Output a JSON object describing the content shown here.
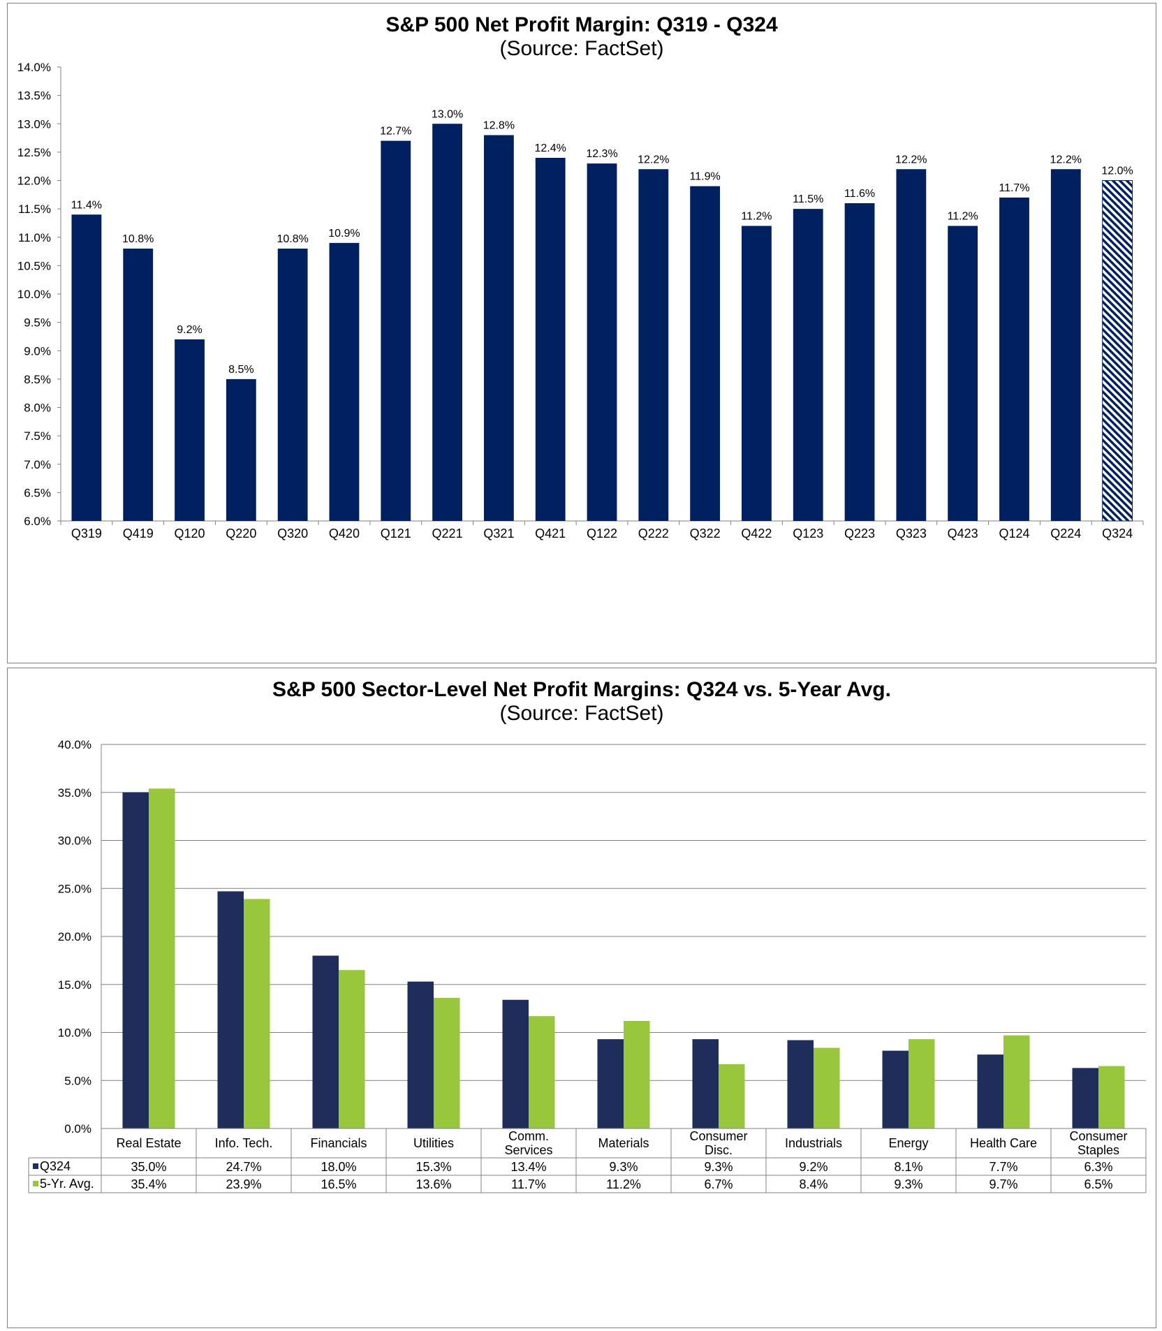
{
  "chart_data": [
    {
      "type": "bar",
      "title": "S&P 500 Net Profit Margin: Q319 - Q324",
      "subtitle": "(Source: FactSet)",
      "categories": [
        "Q319",
        "Q419",
        "Q120",
        "Q220",
        "Q320",
        "Q420",
        "Q121",
        "Q221",
        "Q321",
        "Q421",
        "Q122",
        "Q222",
        "Q322",
        "Q422",
        "Q123",
        "Q223",
        "Q323",
        "Q423",
        "Q124",
        "Q224",
        "Q324"
      ],
      "values": [
        11.4,
        10.8,
        9.2,
        8.5,
        10.8,
        10.9,
        12.7,
        13.0,
        12.8,
        12.4,
        12.3,
        12.2,
        11.9,
        11.2,
        11.5,
        11.6,
        12.2,
        11.2,
        11.7,
        12.2,
        12.0
      ],
      "data_labels": [
        "11.4%",
        "10.8%",
        "9.2%",
        "8.5%",
        "10.8%",
        "10.9%",
        "12.7%",
        "13.0%",
        "12.8%",
        "12.4%",
        "12.3%",
        "12.2%",
        "11.9%",
        "11.2%",
        "11.5%",
        "11.6%",
        "12.2%",
        "11.2%",
        "11.7%",
        "12.2%",
        "12.0%"
      ],
      "estimated_last": true,
      "ylim": [
        6.0,
        14.0
      ],
      "yticks": [
        "6.0%",
        "6.5%",
        "7.0%",
        "7.5%",
        "8.0%",
        "8.5%",
        "9.0%",
        "9.5%",
        "10.0%",
        "10.5%",
        "11.0%",
        "11.5%",
        "12.0%",
        "12.5%",
        "13.0%",
        "13.5%",
        "14.0%"
      ],
      "xlabel": "",
      "ylabel": "",
      "grid": false,
      "colors": {
        "bar": "#002060",
        "hatch": "#002060"
      }
    },
    {
      "type": "bar",
      "title": "S&P 500 Sector-Level Net Profit Margins: Q324 vs. 5-Year Avg.",
      "subtitle": "(Source: FactSet)",
      "categories": [
        [
          "Real Estate"
        ],
        [
          "Info. Tech."
        ],
        [
          "Financials"
        ],
        [
          "Utilities"
        ],
        [
          "Comm.",
          "Services"
        ],
        [
          "Materials"
        ],
        [
          "Consumer",
          "Disc."
        ],
        [
          "Industrials"
        ],
        [
          "Energy"
        ],
        [
          "Health Care"
        ],
        [
          "Consumer",
          "Staples"
        ]
      ],
      "series": [
        {
          "name": "Q324",
          "values": [
            35.0,
            24.7,
            18.0,
            15.3,
            13.4,
            9.3,
            9.3,
            9.2,
            8.1,
            7.7,
            6.3
          ],
          "labels": [
            "35.0%",
            "24.7%",
            "18.0%",
            "15.3%",
            "13.4%",
            "9.3%",
            "9.3%",
            "9.2%",
            "8.1%",
            "7.7%",
            "6.3%"
          ],
          "color": "#1f2d5a"
        },
        {
          "name": "5-Yr. Avg.",
          "values": [
            35.4,
            23.9,
            16.5,
            13.6,
            11.7,
            11.2,
            6.7,
            8.4,
            9.3,
            9.7,
            6.5
          ],
          "labels": [
            "35.4%",
            "23.9%",
            "16.5%",
            "13.6%",
            "11.7%",
            "11.2%",
            "6.7%",
            "8.4%",
            "9.3%",
            "9.7%",
            "6.5%"
          ],
          "color": "#99c73c"
        }
      ],
      "ylim": [
        0,
        40
      ],
      "yticks": [
        "0.0%",
        "5.0%",
        "10.0%",
        "15.0%",
        "20.0%",
        "25.0%",
        "30.0%",
        "35.0%",
        "40.0%"
      ],
      "xlabel": "",
      "ylabel": "",
      "grid": true,
      "legend": "data-table"
    }
  ]
}
